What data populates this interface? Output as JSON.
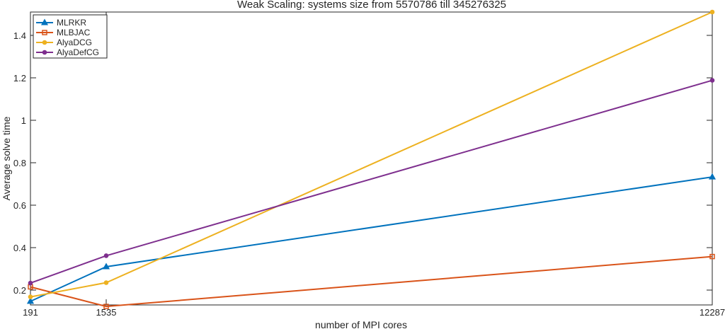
{
  "chart_data": {
    "type": "line",
    "title": "Weak Scaling: systems size from 5570786 till 345276325",
    "xlabel": "number of MPI cores",
    "ylabel": "Average solve time",
    "x": [
      191,
      1535,
      12287
    ],
    "x_ticks": [
      "191",
      "1535",
      "12287"
    ],
    "xlim": [
      191,
      12287
    ],
    "ylim": [
      0.13,
      1.51
    ],
    "y_ticks": [
      0.2,
      0.4,
      0.6,
      0.8,
      1,
      1.2,
      1.4
    ],
    "y_tick_labels": [
      "0.2",
      "0.4",
      "0.6",
      "0.8",
      "1",
      "1.2",
      "1.4"
    ],
    "grid": false,
    "legend_position": "top-left",
    "series": [
      {
        "name": "MLRKR",
        "values": [
          0.147,
          0.31,
          0.733
        ],
        "color": "#0072BD",
        "marker": "triangle"
      },
      {
        "name": "MLBJAC",
        "values": [
          0.215,
          0.123,
          0.358
        ],
        "color": "#D95319",
        "marker": "square"
      },
      {
        "name": "AlyaDCG",
        "values": [
          0.168,
          0.235,
          1.51
        ],
        "color": "#EDB120",
        "marker": "circle"
      },
      {
        "name": "AlyaDefCG",
        "values": [
          0.233,
          0.362,
          1.188
        ],
        "color": "#7E2F8E",
        "marker": "circle"
      }
    ]
  }
}
